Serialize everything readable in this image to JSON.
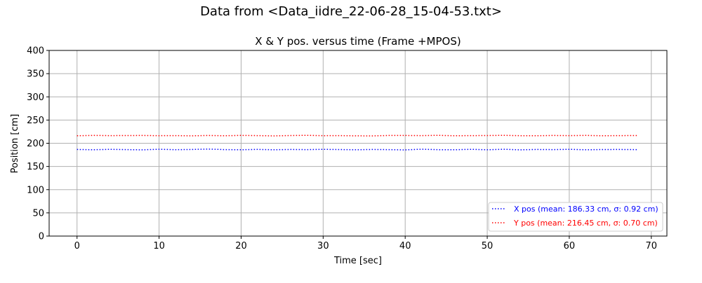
{
  "figure": {
    "suptitle": "Data from <Data_iidre_22-06-28_15-04-53.txt>"
  },
  "chart_data": {
    "type": "line",
    "title": "X & Y pos. versus time (Frame +MPOS)",
    "xlabel": "Time [sec]",
    "ylabel": "Position [cm]",
    "xlim": [
      -3.4,
      71.9
    ],
    "ylim": [
      0,
      400
    ],
    "xticks": [
      0,
      10,
      20,
      30,
      40,
      50,
      60,
      70
    ],
    "yticks": [
      0,
      50,
      100,
      150,
      200,
      250,
      300,
      350,
      400
    ],
    "grid": true,
    "legend": {
      "location": "lower-right"
    },
    "series": [
      {
        "name": "X pos (mean: 186.33 cm, σ: 0.92 cm)",
        "color": "#0000ff",
        "linestyle": "dotted",
        "x": [
          0,
          2,
          4,
          6,
          8,
          10,
          12,
          14,
          16,
          18,
          20,
          22,
          24,
          26,
          28,
          30,
          32,
          34,
          36,
          38,
          40,
          42,
          44,
          46,
          48,
          50,
          52,
          54,
          56,
          58,
          60,
          62,
          64,
          66,
          68.3
        ],
        "values": [
          186.5,
          186.0,
          186.8,
          186.2,
          185.8,
          187.0,
          186.1,
          186.6,
          187.4,
          186.3,
          185.9,
          186.7,
          186.0,
          186.5,
          186.2,
          186.9,
          186.4,
          186.0,
          186.6,
          186.3,
          185.7,
          187.2,
          186.1,
          185.9,
          186.8,
          186.0,
          187.0,
          185.8,
          186.5,
          186.2,
          186.9,
          185.9,
          186.4,
          186.6,
          186.3
        ]
      },
      {
        "name": "Y pos (mean: 216.45 cm, σ: 0.70 cm)",
        "color": "#ff0000",
        "linestyle": "dotted",
        "x": [
          0,
          2,
          4,
          6,
          8,
          10,
          12,
          14,
          16,
          18,
          20,
          22,
          24,
          26,
          28,
          30,
          32,
          34,
          36,
          38,
          40,
          42,
          44,
          46,
          48,
          50,
          52,
          54,
          56,
          58,
          60,
          62,
          64,
          66,
          68.3
        ],
        "values": [
          216.2,
          216.9,
          216.4,
          216.6,
          216.8,
          216.3,
          216.5,
          216.0,
          216.7,
          216.2,
          216.9,
          216.4,
          215.8,
          216.6,
          217.1,
          216.3,
          216.5,
          216.0,
          215.9,
          216.7,
          216.8,
          216.4,
          217.0,
          216.2,
          216.5,
          216.6,
          217.1,
          216.3,
          216.1,
          216.7,
          216.4,
          216.9,
          216.2,
          216.5,
          216.6
        ]
      }
    ]
  }
}
